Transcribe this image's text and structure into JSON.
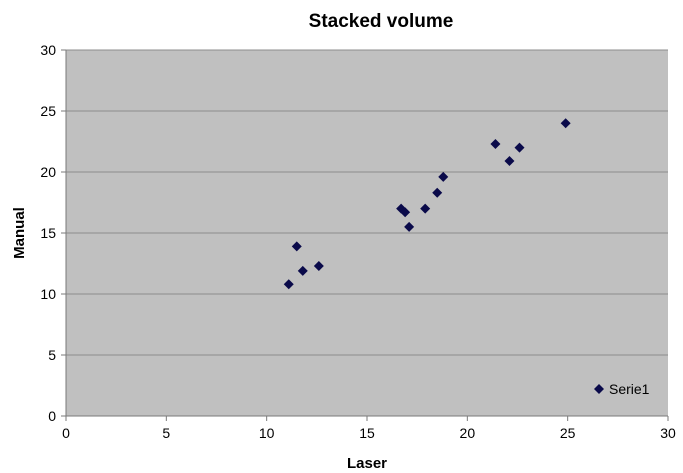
{
  "chart_data": {
    "type": "scatter",
    "title": "Stacked volume",
    "xlabel": "Laser",
    "ylabel": "Manual",
    "xlim": [
      0,
      30
    ],
    "ylim": [
      0,
      30
    ],
    "x_ticks": [
      0,
      5,
      10,
      15,
      20,
      25,
      30
    ],
    "y_ticks": [
      0,
      5,
      10,
      15,
      20,
      25,
      30
    ],
    "x_tick_labels": [
      "0",
      "5",
      "10",
      "15",
      "20",
      "25",
      "30"
    ],
    "y_tick_labels": [
      "0",
      "5",
      "10",
      "15",
      "20",
      "25",
      "30"
    ],
    "grid": "horizontal",
    "legend_position": "bottom-right",
    "colors": {
      "plot_background": "#c0c0c0",
      "gridline": "#8c8c8c",
      "marker": "#0a0a4a"
    },
    "series": [
      {
        "name": "Serie1",
        "marker": "diamond",
        "points": [
          {
            "x": 11.1,
            "y": 10.8
          },
          {
            "x": 11.5,
            "y": 13.9
          },
          {
            "x": 11.8,
            "y": 11.9
          },
          {
            "x": 12.6,
            "y": 12.3
          },
          {
            "x": 16.7,
            "y": 17.0
          },
          {
            "x": 16.9,
            "y": 16.7
          },
          {
            "x": 17.1,
            "y": 15.5
          },
          {
            "x": 17.9,
            "y": 17.0
          },
          {
            "x": 18.5,
            "y": 18.3
          },
          {
            "x": 18.8,
            "y": 19.6
          },
          {
            "x": 21.4,
            "y": 22.3
          },
          {
            "x": 22.1,
            "y": 20.9
          },
          {
            "x": 22.6,
            "y": 22.0
          },
          {
            "x": 24.9,
            "y": 24.0
          }
        ]
      }
    ]
  }
}
